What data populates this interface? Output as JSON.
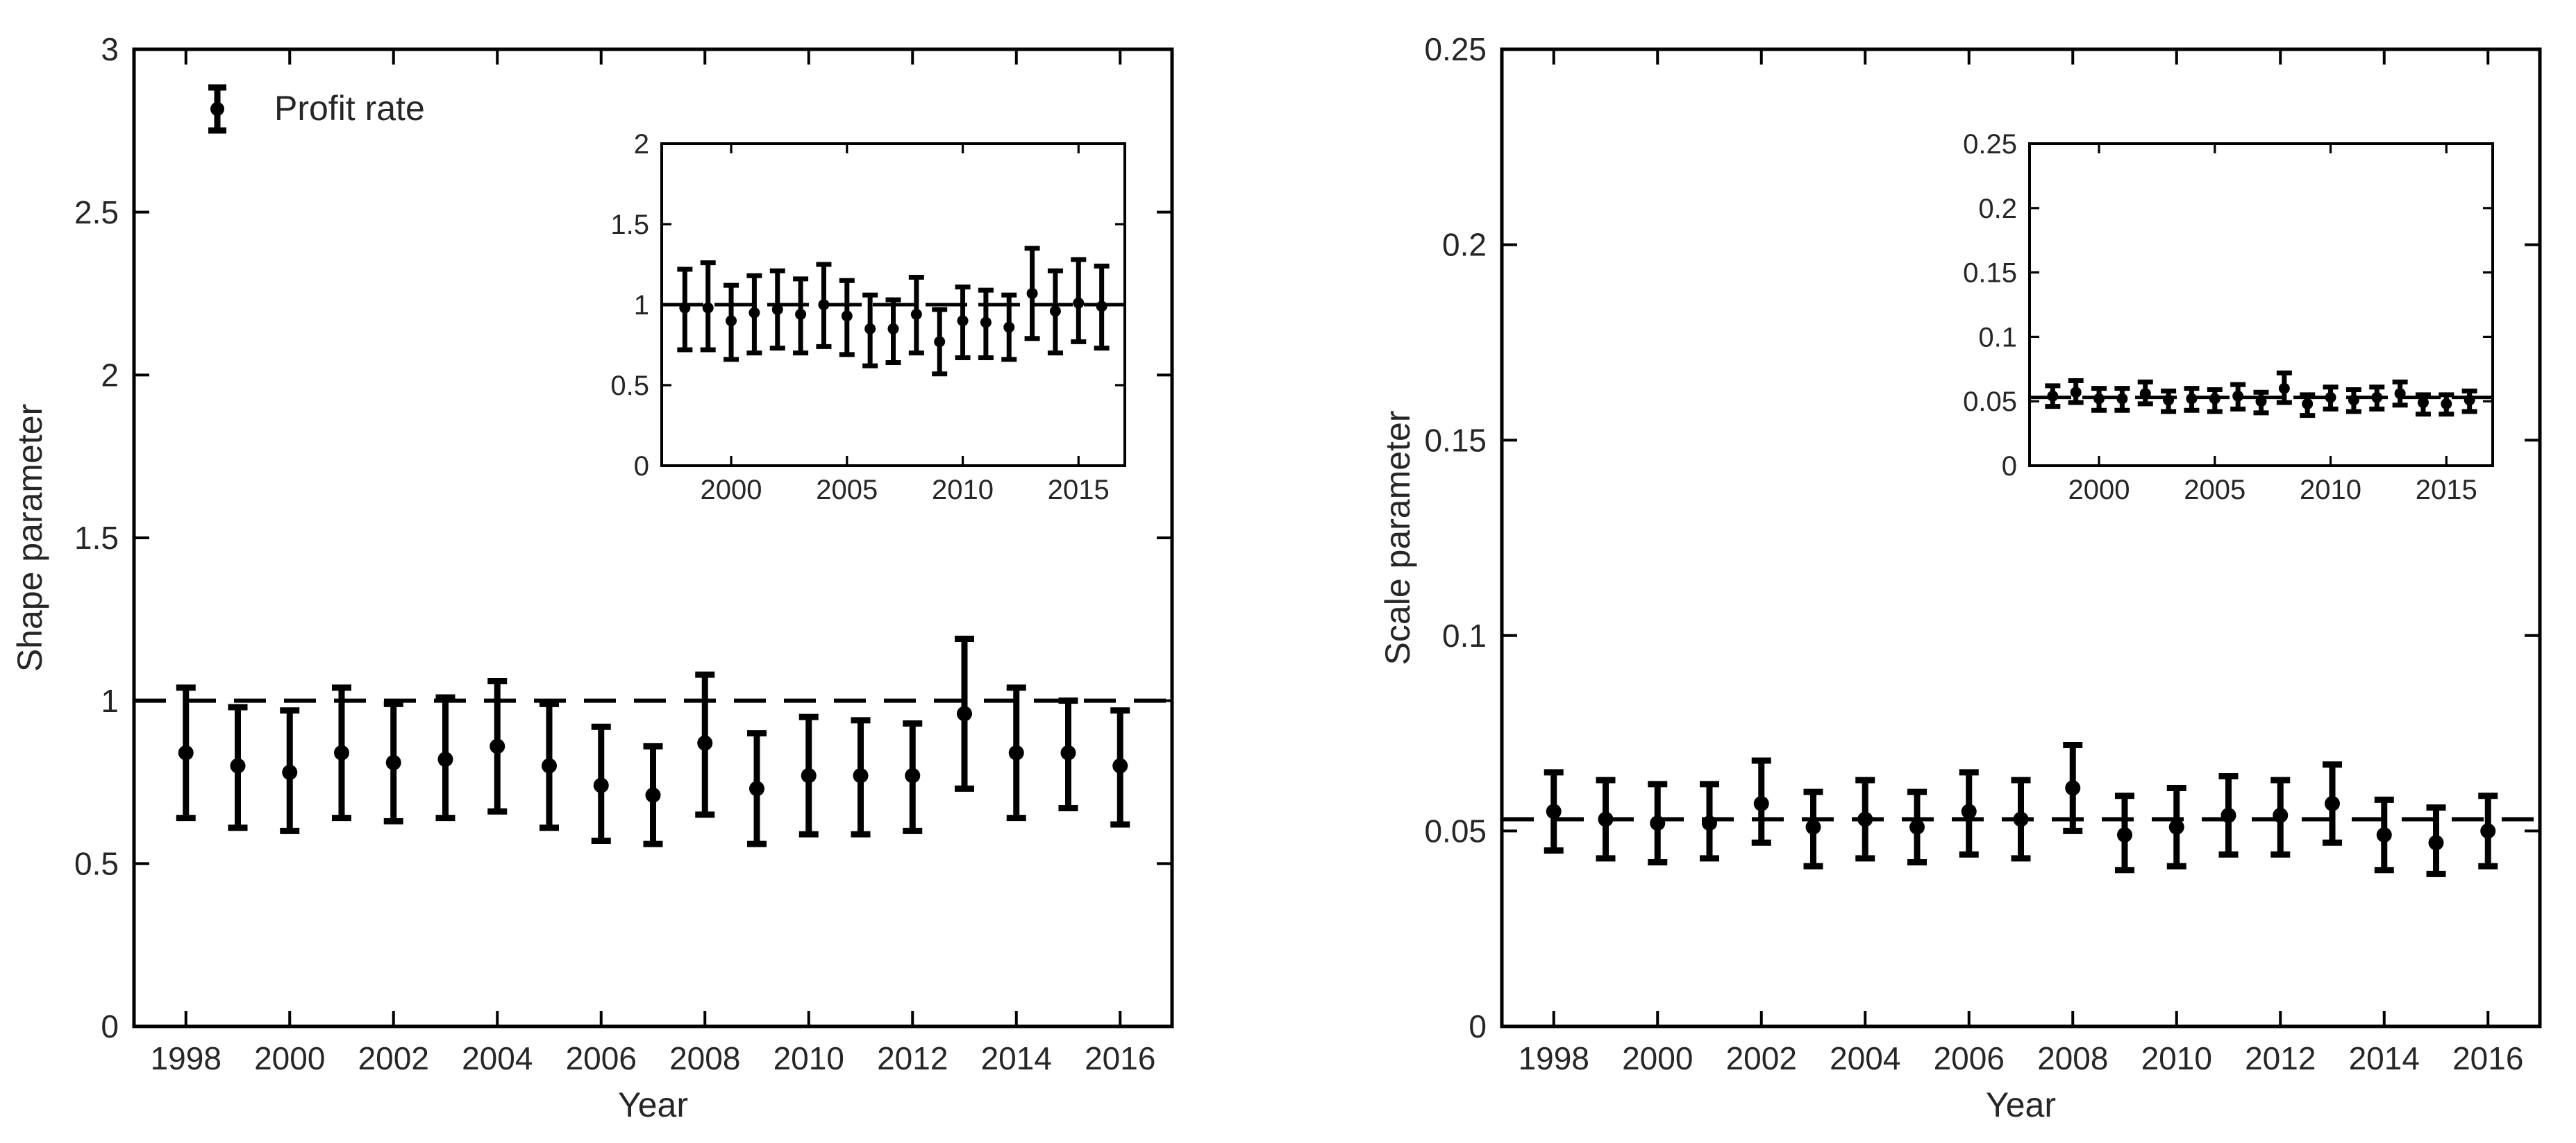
{
  "figure": {
    "background_color": "#ffffff",
    "line_color": "#000000",
    "text_color": "#262626"
  },
  "chart_data": [
    {
      "type": "errorbar",
      "panel": "left",
      "xlabel": "Year",
      "ylabel": "Shape parameter",
      "xlim": [
        1997,
        2017
      ],
      "ylim": [
        0,
        3
      ],
      "grid": false,
      "xticks": [
        1998,
        2000,
        2002,
        2004,
        2006,
        2008,
        2010,
        2012,
        2014,
        2016
      ],
      "xtick_labels": [
        "1998",
        "2000",
        "2002",
        "2004",
        "2006",
        "2008",
        "2010",
        "2012",
        "2014",
        "2016"
      ],
      "yticks": [
        0,
        0.5,
        1,
        1.5,
        2,
        2.5,
        3
      ],
      "ytick_labels": [
        "0",
        "0.5",
        "1",
        "1.5",
        "2",
        "2.5",
        "3"
      ],
      "legend": {
        "label": "Profit rate",
        "position": "top-left"
      },
      "reference_line": {
        "y": 1,
        "style": "dashed"
      },
      "series": [
        {
          "name": "Profit rate",
          "x": [
            1998,
            1999,
            2000,
            2001,
            2002,
            2003,
            2004,
            2005,
            2006,
            2007,
            2008,
            2009,
            2010,
            2011,
            2012,
            2013,
            2014,
            2015,
            2016
          ],
          "y": [
            0.84,
            0.8,
            0.78,
            0.84,
            0.81,
            0.82,
            0.86,
            0.8,
            0.74,
            0.71,
            0.87,
            0.73,
            0.77,
            0.77,
            0.77,
            0.96,
            0.84,
            0.84,
            0.8
          ],
          "y_upper": [
            1.04,
            0.98,
            0.97,
            1.04,
            0.99,
            1.01,
            1.06,
            0.99,
            0.92,
            0.86,
            1.08,
            0.9,
            0.95,
            0.94,
            0.93,
            1.19,
            1.04,
            1.0,
            0.97
          ],
          "y_lower": [
            0.64,
            0.61,
            0.6,
            0.64,
            0.63,
            0.64,
            0.66,
            0.61,
            0.57,
            0.56,
            0.65,
            0.56,
            0.59,
            0.59,
            0.6,
            0.73,
            0.64,
            0.67,
            0.62
          ]
        }
      ],
      "inset": {
        "xlim": [
          1997,
          2017
        ],
        "ylim": [
          0,
          2
        ],
        "xticks": [
          2000,
          2005,
          2010,
          2015
        ],
        "xtick_labels": [
          "2000",
          "2005",
          "2010",
          "2015"
        ],
        "yticks": [
          0,
          0.5,
          1,
          1.5,
          2
        ],
        "ytick_labels": [
          "0",
          "0.5",
          "1",
          "1.5",
          "2"
        ],
        "reference_line": {
          "y": 1,
          "style": "dashed"
        },
        "series": [
          {
            "x": [
              1998,
              1999,
              2000,
              2001,
              2002,
              2003,
              2004,
              2005,
              2006,
              2007,
              2008,
              2009,
              2010,
              2011,
              2012,
              2013,
              2014,
              2015,
              2016
            ],
            "y": [
              0.98,
              0.98,
              0.9,
              0.95,
              0.97,
              0.94,
              1.0,
              0.93,
              0.85,
              0.85,
              0.94,
              0.77,
              0.9,
              0.89,
              0.86,
              1.07,
              0.96,
              1.01,
              0.99
            ],
            "y_upper": [
              1.22,
              1.26,
              1.12,
              1.18,
              1.21,
              1.16,
              1.25,
              1.15,
              1.06,
              1.03,
              1.17,
              0.97,
              1.11,
              1.09,
              1.06,
              1.35,
              1.21,
              1.28,
              1.24
            ],
            "y_lower": [
              0.72,
              0.72,
              0.66,
              0.7,
              0.73,
              0.7,
              0.74,
              0.69,
              0.62,
              0.64,
              0.7,
              0.57,
              0.67,
              0.67,
              0.66,
              0.79,
              0.7,
              0.77,
              0.73
            ]
          }
        ]
      }
    },
    {
      "type": "errorbar",
      "panel": "right",
      "xlabel": "Year",
      "ylabel": "Scale parameter",
      "xlim": [
        1997,
        2017
      ],
      "ylim": [
        0,
        0.25
      ],
      "grid": false,
      "xticks": [
        1998,
        2000,
        2002,
        2004,
        2006,
        2008,
        2010,
        2012,
        2014,
        2016
      ],
      "xtick_labels": [
        "1998",
        "2000",
        "2002",
        "2004",
        "2006",
        "2008",
        "2010",
        "2012",
        "2014",
        "2016"
      ],
      "yticks": [
        0,
        0.05,
        0.1,
        0.15,
        0.2,
        0.25
      ],
      "ytick_labels": [
        "0",
        "0.05",
        "0.1",
        "0.15",
        "0.2",
        "0.25"
      ],
      "legend": null,
      "reference_line": {
        "y": 0.053,
        "style": "dashed"
      },
      "series": [
        {
          "name": "Profit rate",
          "x": [
            1998,
            1999,
            2000,
            2001,
            2002,
            2003,
            2004,
            2005,
            2006,
            2007,
            2008,
            2009,
            2010,
            2011,
            2012,
            2013,
            2014,
            2015,
            2016
          ],
          "y": [
            0.055,
            0.053,
            0.052,
            0.052,
            0.057,
            0.051,
            0.053,
            0.051,
            0.055,
            0.053,
            0.061,
            0.049,
            0.051,
            0.054,
            0.054,
            0.057,
            0.049,
            0.047,
            0.05
          ],
          "y_upper": [
            0.065,
            0.063,
            0.062,
            0.062,
            0.068,
            0.06,
            0.063,
            0.06,
            0.065,
            0.063,
            0.072,
            0.059,
            0.061,
            0.064,
            0.063,
            0.067,
            0.058,
            0.056,
            0.059
          ],
          "y_lower": [
            0.045,
            0.043,
            0.042,
            0.043,
            0.047,
            0.041,
            0.043,
            0.042,
            0.044,
            0.043,
            0.05,
            0.04,
            0.041,
            0.044,
            0.044,
            0.047,
            0.04,
            0.039,
            0.041
          ]
        }
      ],
      "inset": {
        "xlim": [
          1997,
          2017
        ],
        "ylim": [
          0,
          0.25
        ],
        "xticks": [
          2000,
          2005,
          2010,
          2015
        ],
        "xtick_labels": [
          "2000",
          "2005",
          "2010",
          "2015"
        ],
        "yticks": [
          0,
          0.05,
          0.1,
          0.15,
          0.2,
          0.25
        ],
        "ytick_labels": [
          "0",
          "0.05",
          "0.1",
          "0.15",
          "0.2",
          "0.25"
        ],
        "reference_line": {
          "y": 0.053,
          "style": "dashed"
        },
        "series": [
          {
            "x": [
              1998,
              1999,
              2000,
              2001,
              2002,
              2003,
              2004,
              2005,
              2006,
              2007,
              2008,
              2009,
              2010,
              2011,
              2012,
              2013,
              2014,
              2015,
              2016
            ],
            "y": [
              0.054,
              0.057,
              0.052,
              0.052,
              0.056,
              0.051,
              0.052,
              0.052,
              0.054,
              0.05,
              0.06,
              0.048,
              0.053,
              0.051,
              0.053,
              0.056,
              0.049,
              0.048,
              0.051
            ],
            "y_upper": [
              0.062,
              0.066,
              0.06,
              0.06,
              0.065,
              0.058,
              0.06,
              0.059,
              0.063,
              0.057,
              0.072,
              0.055,
              0.061,
              0.059,
              0.061,
              0.065,
              0.055,
              0.055,
              0.058
            ],
            "y_lower": [
              0.046,
              0.049,
              0.043,
              0.043,
              0.048,
              0.042,
              0.043,
              0.042,
              0.044,
              0.041,
              0.049,
              0.039,
              0.044,
              0.042,
              0.044,
              0.047,
              0.04,
              0.04,
              0.042
            ]
          }
        ]
      }
    }
  ]
}
